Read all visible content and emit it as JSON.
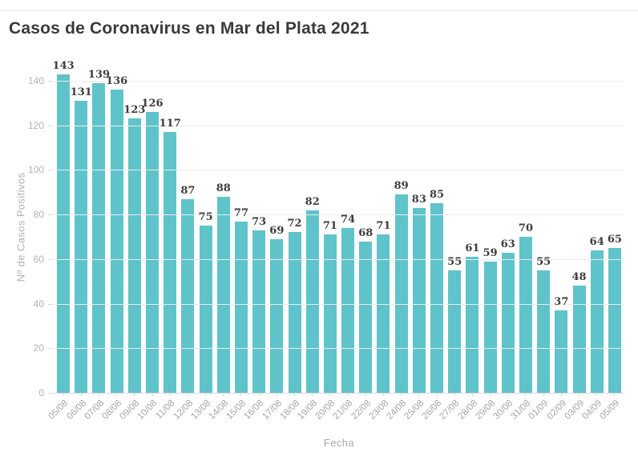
{
  "chart_data": {
    "type": "bar",
    "title": "Casos de Coronavirus en Mar del Plata 2021",
    "xlabel": "Fecha",
    "ylabel": "Nº de Casos Positivos",
    "categories": [
      "05/08",
      "06/08",
      "07/08",
      "08/08",
      "09/08",
      "10/08",
      "11/08",
      "12/08",
      "13/08",
      "14/08",
      "15/08",
      "16/08",
      "17/08",
      "18/08",
      "19/08",
      "20/08",
      "21/08",
      "22/08",
      "23/08",
      "24/08",
      "25/08",
      "26/08",
      "27/08",
      "28/08",
      "29/08",
      "30/08",
      "31/08",
      "01/09",
      "02/09",
      "03/09",
      "04/09",
      "05/09"
    ],
    "values": [
      143,
      131,
      139,
      136,
      123,
      126,
      117,
      87,
      75,
      88,
      77,
      73,
      69,
      72,
      82,
      71,
      74,
      68,
      71,
      89,
      83,
      85,
      55,
      61,
      59,
      63,
      70,
      55,
      37,
      48,
      64,
      65
    ],
    "ylim": [
      0,
      140
    ],
    "yticks": [
      0,
      20,
      40,
      60,
      80,
      100,
      120,
      140
    ],
    "grid": true,
    "legend": "none",
    "bar_color": "#5fc3ca",
    "value_label_color": "#3d3d3d",
    "axis_label_color": "#b0b0b0",
    "title_color": "#3a3a3a"
  }
}
